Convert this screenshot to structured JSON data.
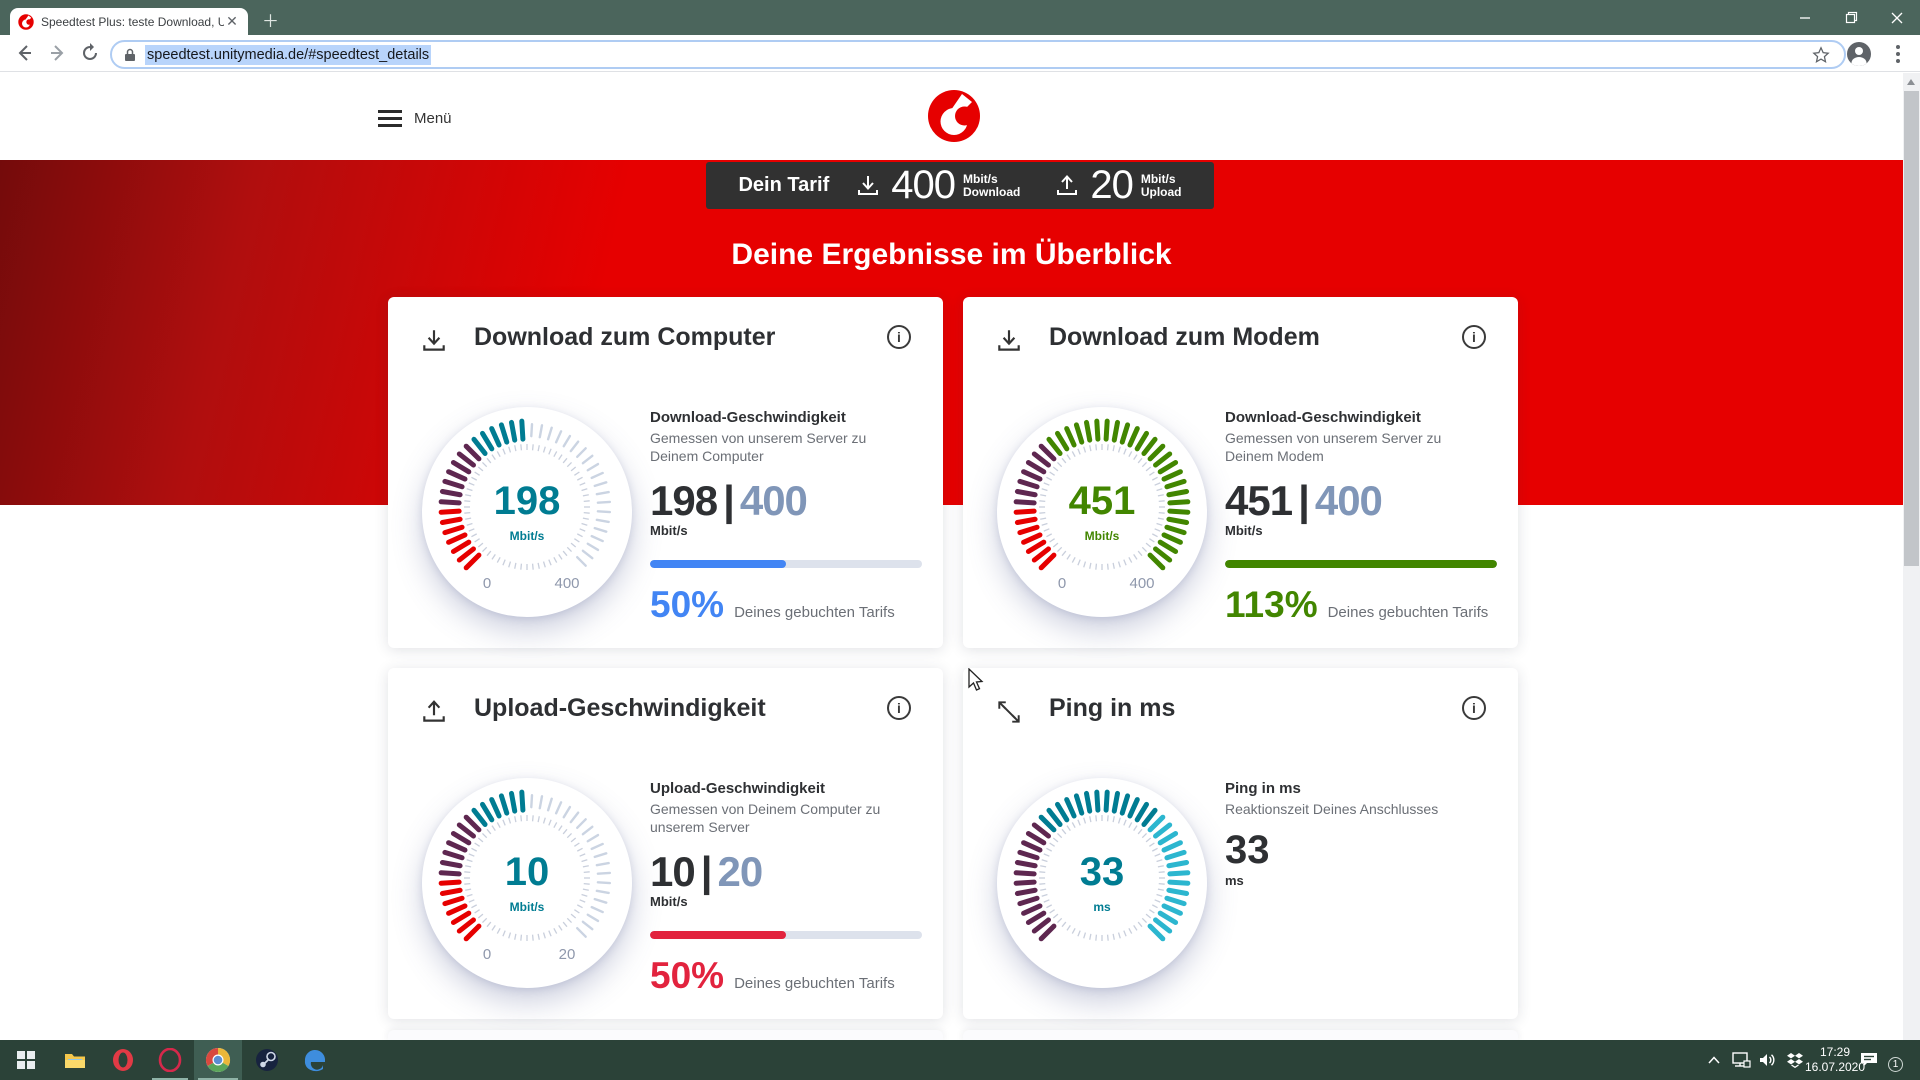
{
  "browser": {
    "tab_title": "Speedtest Plus: teste Download, U",
    "url": "speedtest.unitymedia.de/#speedtest_details"
  },
  "site_header": {
    "menu_label": "Menü"
  },
  "tariff_banner": {
    "label": "Dein Tarif",
    "download": {
      "value": "400",
      "unit": "Mbit/s",
      "label": "Download"
    },
    "upload": {
      "value": "20",
      "unit": "Mbit/s",
      "label": "Upload"
    }
  },
  "page_title": "Deine Ergebnisse im Überblick",
  "cards": [
    {
      "title": "Download zum Computer",
      "metric_title": "Download-Geschwindigkeit",
      "metric_desc": "Gemessen von unserem Server zu Deinem Computer",
      "value": "198",
      "separator": "|",
      "target": "400",
      "unit": "Mbit/s",
      "percent_text": "50%",
      "percent_label": "Deines gebuchten Tarifs",
      "bar_percent": 50,
      "accent": "#4285f4",
      "gauge": {
        "value": "198",
        "unit": "Mbit/s",
        "min": "0",
        "max": "400",
        "ticks": 40,
        "value_color": "#007c92",
        "segments": [
          {
            "count": 7,
            "color": "#e60000"
          },
          {
            "count": 7,
            "color": "#5e2750"
          },
          {
            "count": 6,
            "color": "#007c92"
          }
        ]
      }
    },
    {
      "title": "Download zum Modem",
      "metric_title": "Download-Geschwindigkeit",
      "metric_desc": "Gemessen von unserem Server zu Deinem Modem",
      "value": "451",
      "separator": "|",
      "target": "400",
      "unit": "Mbit/s",
      "percent_text": "113%",
      "percent_label": "Deines gebuchten Tarifs",
      "bar_percent": 100,
      "accent": "#428600",
      "gauge": {
        "value": "451",
        "unit": "Mbit/s",
        "min": "0",
        "max": "400",
        "ticks": 40,
        "value_color": "#428600",
        "segments": [
          {
            "count": 7,
            "color": "#e60000"
          },
          {
            "count": 7,
            "color": "#5e2750"
          },
          {
            "count": 26,
            "color": "#428600"
          }
        ]
      }
    },
    {
      "title": "Upload-Geschwindigkeit",
      "metric_title": "Upload-Geschwindigkeit",
      "metric_desc": "Gemessen von Deinem Computer zu unserem Server",
      "value": "10",
      "separator": "|",
      "target": "20",
      "unit": "Mbit/s",
      "percent_text": "50%",
      "percent_label": "Deines gebuchten Tarifs",
      "bar_percent": 50,
      "accent": "#e2233e",
      "gauge": {
        "value": "10",
        "unit": "Mbit/s",
        "min": "0",
        "max": "20",
        "ticks": 40,
        "value_color": "#007c92",
        "segments": [
          {
            "count": 7,
            "color": "#e60000"
          },
          {
            "count": 7,
            "color": "#5e2750"
          },
          {
            "count": 6,
            "color": "#007c92"
          }
        ]
      }
    },
    {
      "title": "Ping in ms",
      "metric_title": "Ping in ms",
      "metric_desc": "Reaktionszeit Deines Anschlusses",
      "value": "33",
      "unit": "ms",
      "gauge": {
        "value": "33",
        "unit": "ms",
        "min": "",
        "max": "",
        "ticks": 40,
        "value_color": "#007c92",
        "segments": [
          {
            "count": 13,
            "color": "#5e2750"
          },
          {
            "count": 13,
            "color": "#007c92"
          },
          {
            "count": 14,
            "color": "#2cb6cf"
          }
        ]
      }
    }
  ],
  "colors": {
    "brand_red": "#e60000",
    "accent_blue": "#4285f4",
    "accent_green": "#428600",
    "accent_crimson": "#e2233e",
    "teal": "#007c92",
    "aubergine": "#5e2750",
    "cyan": "#2cb6cf",
    "target_number": "#8096b8"
  },
  "taskbar": {
    "time": "17:29",
    "date": "16.07.2020",
    "notification_count": "1"
  }
}
